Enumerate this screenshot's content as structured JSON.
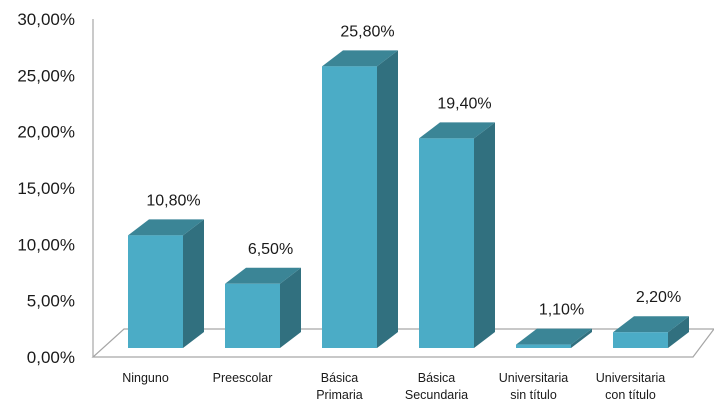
{
  "chart_data": {
    "type": "bar",
    "style": "3d-column",
    "categories": [
      [
        "Ninguno"
      ],
      [
        "Preescolar"
      ],
      [
        "Básica",
        "Primaria"
      ],
      [
        "Básica",
        "Secundaria"
      ],
      [
        "Universitaria",
        "sin título"
      ],
      [
        "Universitaria",
        "con título"
      ]
    ],
    "values": [
      10.8,
      6.5,
      25.8,
      19.4,
      1.1,
      2.2
    ],
    "data_labels": [
      "10,80%",
      "6,50%",
      "25,80%",
      "19,40%",
      "1,10%",
      "2,20%"
    ],
    "y_ticks": [
      "0,00%",
      "5,00%",
      "10,00%",
      "15,00%",
      "20,00%",
      "25,00%",
      "30,00%"
    ],
    "ylim": [
      0,
      30
    ],
    "grid": false,
    "legend": "none",
    "colors": {
      "front": "#4BACC6",
      "side": "#31707F",
      "top": "#3B8596",
      "axis": "#A6A6A6"
    }
  }
}
